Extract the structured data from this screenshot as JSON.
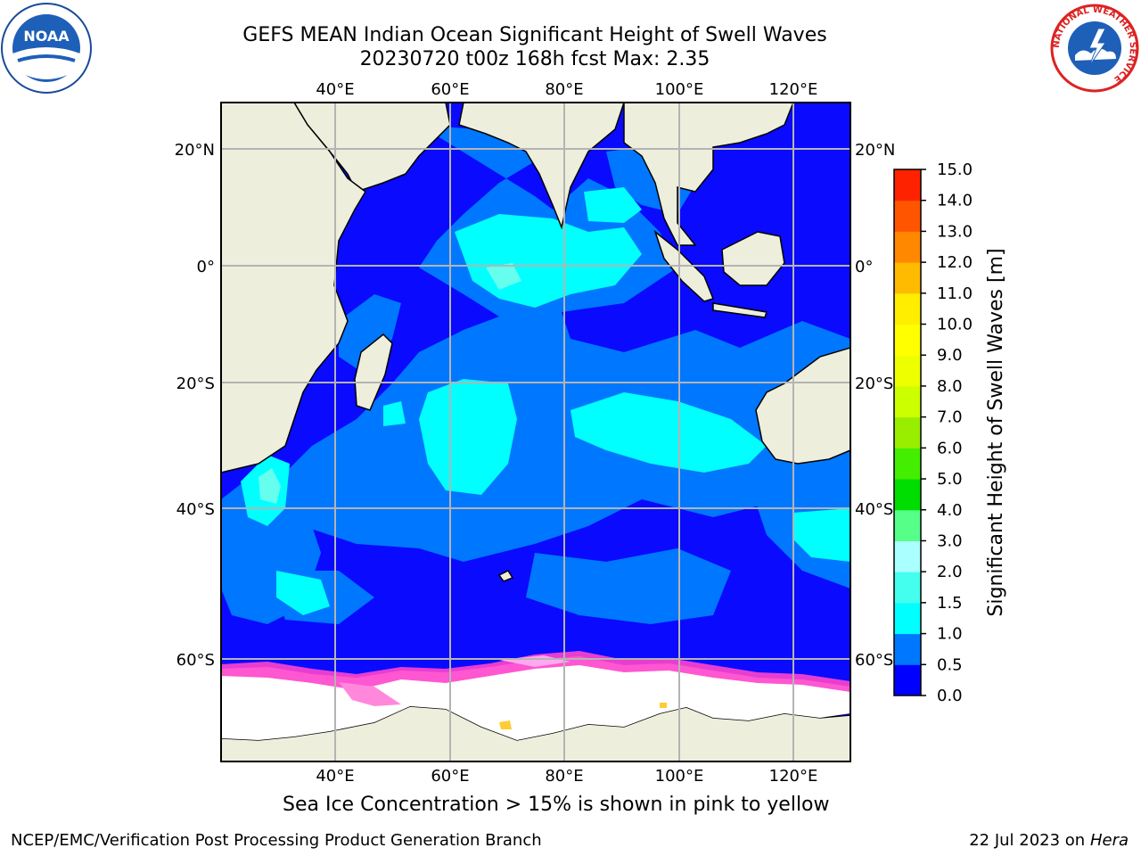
{
  "title_line1": "GEFS MEAN Indian Ocean Significant Height of Swell Waves",
  "title_line2": "20230720 t00z 168h fcst   Max: 2.35",
  "map": {
    "lon_ticks_top": [
      "40°E",
      "60°E",
      "80°E",
      "100°E",
      "120°E"
    ],
    "lon_ticks_bottom": [
      "40°E",
      "60°E",
      "80°E",
      "100°E",
      "120°E"
    ],
    "lat_ticks_left": [
      "20°N",
      "0°",
      "20°S",
      "40°S",
      "60°S"
    ],
    "lat_ticks_right": [
      "20°N",
      "0°",
      "20°S",
      "40°S",
      "60°S"
    ],
    "lon_values": [
      40,
      60,
      80,
      100,
      120
    ],
    "lat_values": [
      20,
      0,
      -20,
      -40,
      -60
    ],
    "ocean_color": "#0a0aff",
    "land_color": "#eeeedd",
    "ice_color": "#ffffff"
  },
  "colorbar": {
    "label": "Significant Height of Swell Waves [m]",
    "ticks": [
      "15.0",
      "14.0",
      "13.0",
      "12.0",
      "11.0",
      "10.0",
      "9.0",
      "8.0",
      "7.0",
      "6.0",
      "5.0",
      "4.0",
      "3.0",
      "2.0",
      "1.5",
      "1.0",
      "0.5",
      "0.0"
    ],
    "levels": [
      0.0,
      0.5,
      1.0,
      1.5,
      2.0,
      3.0,
      4.0,
      5.0,
      6.0,
      7.0,
      8.0,
      9.0,
      10.0,
      11.0,
      12.0,
      13.0,
      14.0,
      15.0
    ],
    "colors": [
      "#0000ff",
      "#0077ff",
      "#00ffff",
      "#44ffee",
      "#aaffff",
      "#55ff88",
      "#00dd00",
      "#44ee00",
      "#99ee00",
      "#ccff00",
      "#eeff00",
      "#ffff00",
      "#ffee00",
      "#ffbb00",
      "#ff8800",
      "#ff5500",
      "#ff2200"
    ]
  },
  "logos": {
    "noaa_text": "NOAA",
    "nws_ring_text": "NATIONAL WEATHER SERVICE"
  },
  "caption": "Sea Ice Concentration > 15% is shown in pink to yellow",
  "footer_left": "NCEP/EMC/Verification Post Processing Product Generation Branch",
  "footer_right_prefix": "22 Jul 2023 on ",
  "footer_right_host": "Hera"
}
